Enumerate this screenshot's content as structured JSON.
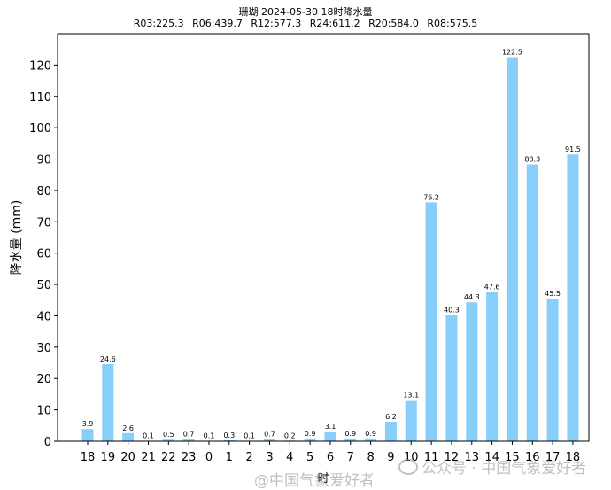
{
  "title": "珊瑚 2024-05-30 18时降水量",
  "subtitle": "R03:225.3    R06:439.7    R12:577.3    R24:611.2    R20:584.0    R08:575.5",
  "watermarks": [
    "@中国气象爱好者",
    "公众号 · 中国气象爱好者"
  ],
  "colors": {
    "bar": "#87CEFA",
    "axis": "#000000"
  },
  "chart_data": {
    "type": "bar",
    "title": "珊瑚 2024-05-30 18时降水量",
    "subtitle": "R03:225.3    R06:439.7    R12:577.3    R24:611.2    R20:584.0    R08:575.5",
    "xlabel": "时",
    "ylabel": "降水量 (mm)",
    "ylim": [
      0,
      130
    ],
    "yticks": [
      0,
      10,
      20,
      30,
      40,
      50,
      60,
      70,
      80,
      90,
      100,
      110,
      120
    ],
    "categories": [
      "18",
      "19",
      "20",
      "21",
      "22",
      "23",
      "0",
      "1",
      "2",
      "3",
      "4",
      "5",
      "6",
      "7",
      "8",
      "9",
      "10",
      "11",
      "12",
      "13",
      "14",
      "15",
      "16",
      "17",
      "18"
    ],
    "values": [
      3.9,
      24.6,
      2.6,
      0.1,
      0.5,
      0.7,
      0.1,
      0.3,
      0.1,
      0.7,
      0.2,
      0.9,
      3.1,
      0.9,
      0.9,
      6.2,
      13.1,
      76.2,
      40.3,
      44.3,
      47.6,
      122.5,
      88.3,
      45.5,
      91.5
    ],
    "data_labels": [
      "3.9",
      "24.6",
      "2.6",
      "0.1",
      "0.5",
      "0.7",
      "0.1",
      "0.3",
      "0.1",
      "0.7",
      "0.2",
      "0.9",
      "3.1",
      "0.9",
      "0.9",
      "6.2",
      "13.1",
      "76.2",
      "40.3",
      "44.3",
      "47.6",
      "122.5",
      "88.3",
      "45.5",
      "91.5"
    ],
    "grid": false,
    "legend": "none"
  }
}
